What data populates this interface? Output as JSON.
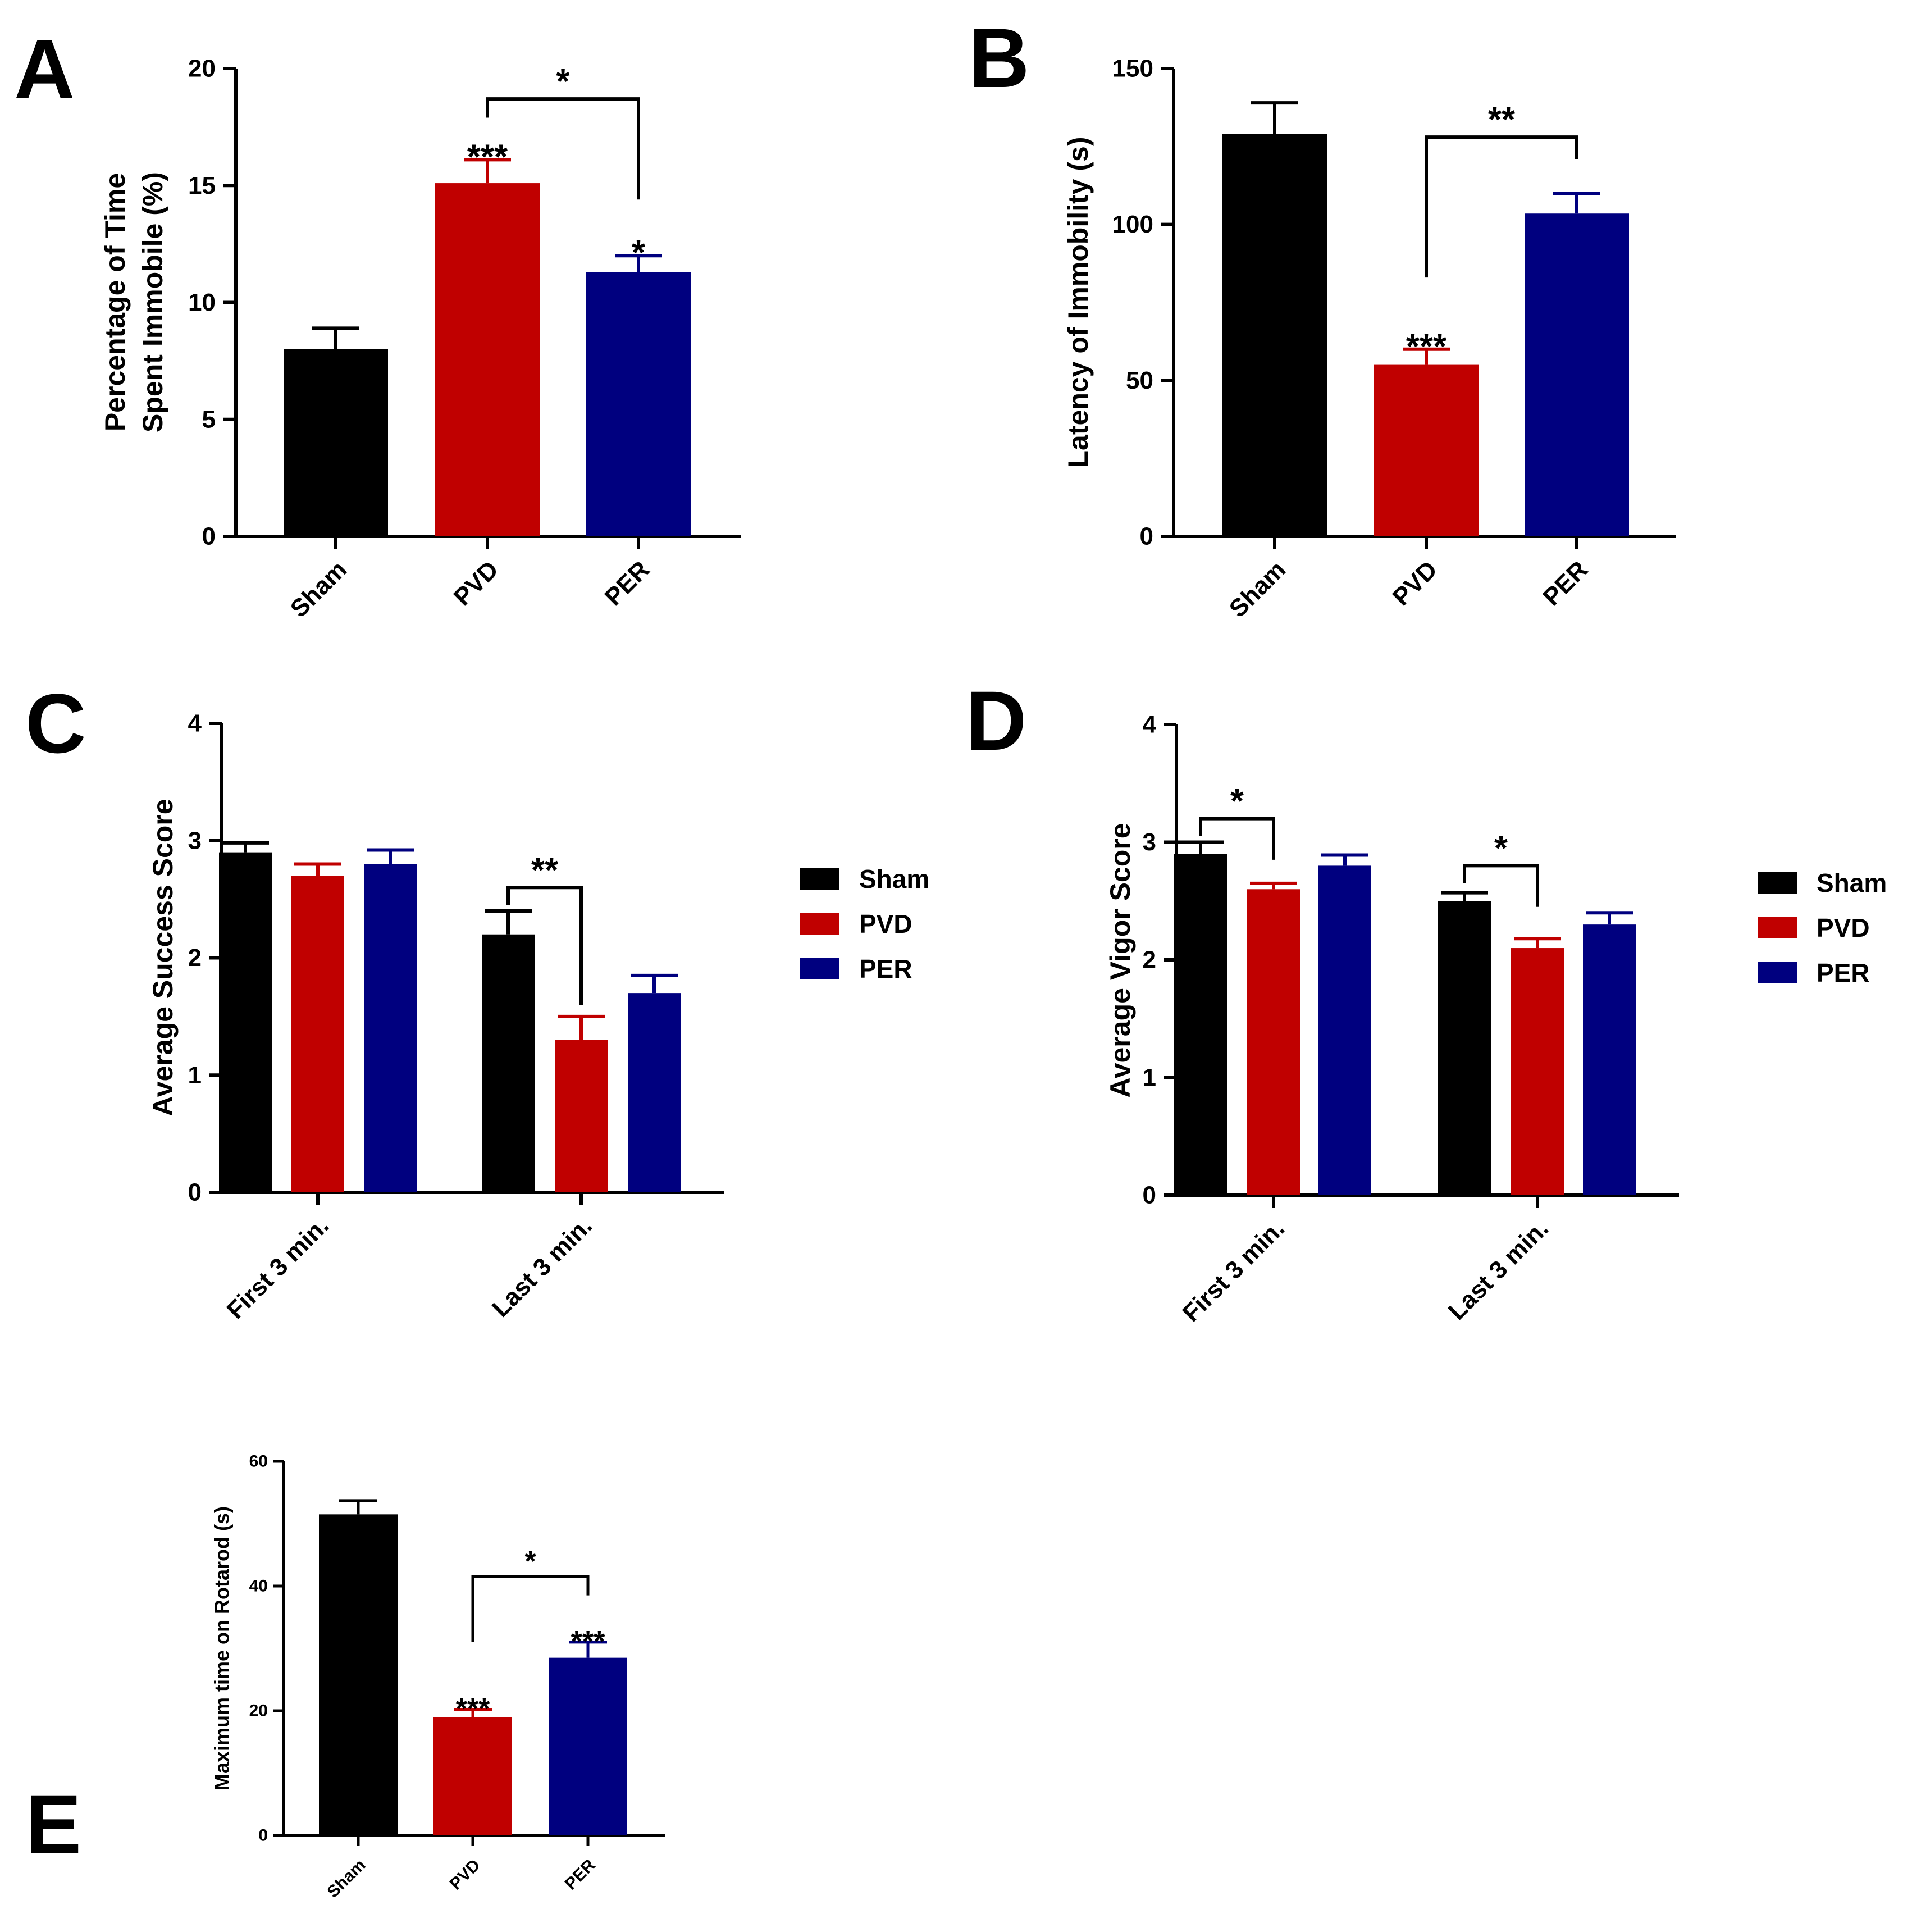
{
  "colors": {
    "Sham": "#000000",
    "PVD": "#c00000",
    "PER": "#00007f"
  },
  "chart_data": [
    {
      "panel": "A",
      "type": "bar",
      "ylabel": [
        "Percentage of Time",
        "Spent Immobile (%)"
      ],
      "ylim": [
        0,
        20
      ],
      "yticks": [
        0,
        5,
        10,
        15,
        20
      ],
      "categories": [
        "Sham",
        "PVD",
        "PER"
      ],
      "values": [
        8.0,
        15.1,
        11.3
      ],
      "errors": [
        0.9,
        1.0,
        0.7
      ],
      "significance": [
        {
          "label": "***",
          "on": "PVD"
        },
        {
          "label": "*",
          "on": "PER"
        }
      ],
      "brackets": [
        {
          "from": "PVD",
          "to": "PER",
          "label": "*",
          "y": 18.7,
          "from_end": 17.9,
          "to_end": 14.4
        }
      ]
    },
    {
      "panel": "B",
      "type": "bar",
      "ylabel": [
        "Latency of Immobility (s)"
      ],
      "ylim": [
        0,
        150
      ],
      "yticks": [
        0,
        50,
        100,
        150
      ],
      "categories": [
        "Sham",
        "PVD",
        "PER"
      ],
      "values": [
        129,
        55,
        103.5
      ],
      "errors": [
        10,
        5,
        6.5
      ],
      "significance": [
        {
          "label": "***",
          "on": "PVD"
        }
      ],
      "brackets": [
        {
          "from": "PVD",
          "to": "PER",
          "label": "**",
          "y": 128,
          "from_end": 83,
          "to_end": 121
        }
      ]
    },
    {
      "panel": "C",
      "type": "bar",
      "ylabel": [
        "Average Success Score"
      ],
      "ylim": [
        0,
        4
      ],
      "yticks": [
        0,
        1,
        2,
        3,
        4
      ],
      "categories": [
        "First 3 min.",
        "Last 3 min."
      ],
      "series": [
        {
          "name": "Sham",
          "values": [
            2.9,
            2.2
          ],
          "errors": [
            0.08,
            0.2
          ]
        },
        {
          "name": "PVD",
          "values": [
            2.7,
            1.3
          ],
          "errors": [
            0.1,
            0.2
          ]
        },
        {
          "name": "PER",
          "values": [
            2.8,
            1.7
          ],
          "errors": [
            0.12,
            0.15
          ]
        }
      ],
      "legend": "right",
      "brackets": [
        {
          "group": 1,
          "from": "Sham",
          "to": "PVD",
          "label": "**",
          "y": 2.6,
          "from_end": 2.45,
          "to_end": 1.6
        }
      ]
    },
    {
      "panel": "D",
      "type": "bar",
      "ylabel": [
        "Average Vigor Score"
      ],
      "ylim": [
        0,
        4
      ],
      "yticks": [
        0,
        1,
        2,
        3,
        4
      ],
      "categories": [
        "First 3 min.",
        "Last 3 min."
      ],
      "series": [
        {
          "name": "Sham",
          "values": [
            2.9,
            2.5
          ],
          "errors": [
            0.1,
            0.07
          ]
        },
        {
          "name": "PVD",
          "values": [
            2.6,
            2.1
          ],
          "errors": [
            0.05,
            0.08
          ]
        },
        {
          "name": "PER",
          "values": [
            2.8,
            2.3
          ],
          "errors": [
            0.09,
            0.1
          ]
        }
      ],
      "legend": "right",
      "brackets": [
        {
          "group": 0,
          "from": "Sham",
          "to": "PVD",
          "label": "*",
          "y": 3.2,
          "from_end": 3.05,
          "to_end": 2.85
        },
        {
          "group": 1,
          "from": "Sham",
          "to": "PVD",
          "label": "*",
          "y": 2.8,
          "from_end": 2.65,
          "to_end": 2.45
        }
      ]
    },
    {
      "panel": "E",
      "type": "bar",
      "ylabel": [
        "Maximum time on Rotarod (s)"
      ],
      "ylim": [
        0,
        60
      ],
      "yticks": [
        0,
        20,
        40,
        60
      ],
      "categories": [
        "Sham",
        "PVD",
        "PER"
      ],
      "values": [
        51.5,
        19,
        28.5
      ],
      "errors": [
        2.2,
        1.2,
        2.5
      ],
      "significance": [
        {
          "label": "***",
          "on": "PVD"
        },
        {
          "label": "***",
          "on": "PER"
        }
      ],
      "brackets": [
        {
          "from": "PVD",
          "to": "PER",
          "label": "*",
          "y": 41.5,
          "from_end": 31,
          "to_end": 38.5
        }
      ]
    }
  ]
}
